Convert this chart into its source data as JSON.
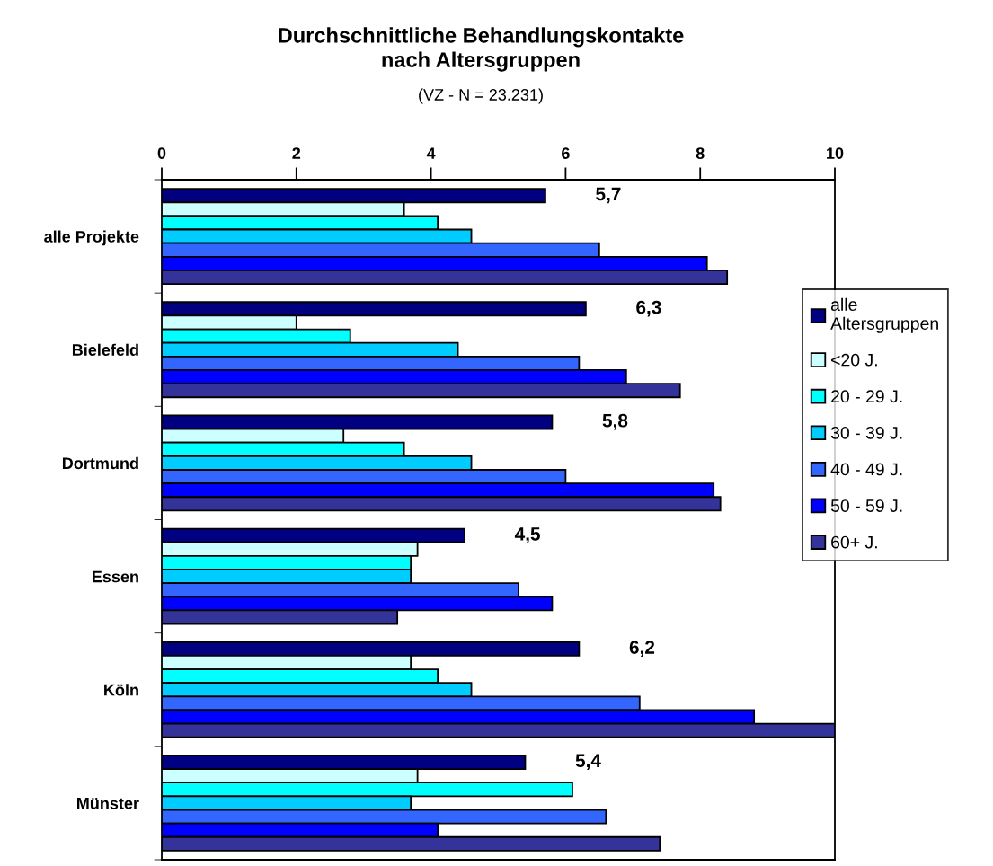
{
  "chart_data": {
    "type": "bar",
    "orientation": "horizontal",
    "title": "Durchschnittliche Behandlungskontakte\nnach Altersgruppen",
    "subtitle": "(VZ - N = 23.231)",
    "categories": [
      "alle Projekte",
      "Bielefeld",
      "Dortmund",
      "Essen",
      "Köln",
      "Münster"
    ],
    "series": [
      {
        "name": "alle\nAltersgruppen",
        "color": "#000080",
        "values": [
          5.7,
          6.3,
          5.8,
          4.5,
          6.2,
          5.4
        ],
        "value_labels": [
          "5,7",
          "6,3",
          "5,8",
          "4,5",
          "6,2",
          "5,4"
        ]
      },
      {
        "name": "<20 J.",
        "color": "#ccffff",
        "values": [
          3.6,
          2.0,
          2.7,
          3.8,
          3.7,
          3.8
        ]
      },
      {
        "name": "20 - 29 J.",
        "color": "#00ffff",
        "values": [
          4.1,
          2.8,
          3.6,
          3.7,
          4.1,
          6.1
        ]
      },
      {
        "name": "30 - 39 J.",
        "color": "#00ccff",
        "values": [
          4.6,
          4.4,
          4.6,
          3.7,
          4.6,
          3.7
        ]
      },
      {
        "name": "40 - 49 J.",
        "color": "#3366ff",
        "values": [
          6.5,
          6.2,
          6.0,
          5.3,
          7.1,
          6.6
        ]
      },
      {
        "name": "50 - 59 J.",
        "color": "#0000ff",
        "values": [
          8.1,
          6.9,
          8.2,
          5.8,
          8.8,
          4.1
        ]
      },
      {
        "name": "60+ J.",
        "color": "#333399",
        "values": [
          8.4,
          7.7,
          8.3,
          3.5,
          10.0,
          7.4
        ]
      }
    ],
    "xlim": [
      0,
      10
    ],
    "xticks": [
      0,
      2,
      4,
      6,
      8,
      10
    ],
    "legend": "right",
    "grid": false
  }
}
